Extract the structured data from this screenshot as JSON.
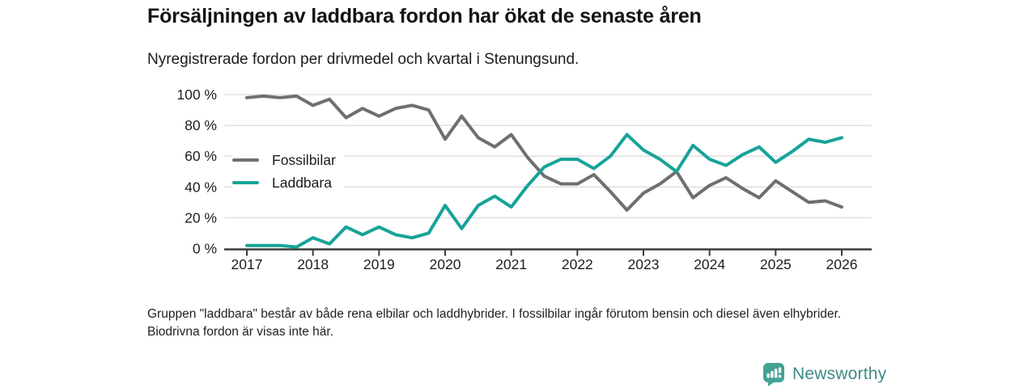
{
  "header": {
    "title": "Försäljningen av laddbara fordon har ökat de senaste åren",
    "subtitle": "Nyregistrerade fordon per drivmedel och kvartal i Stenungsund."
  },
  "chart_data": {
    "type": "line",
    "x_ticks": [
      {
        "label": "2017",
        "at_quarter": 0
      },
      {
        "label": "2018",
        "at_quarter": 4
      },
      {
        "label": "2019",
        "at_quarter": 8
      },
      {
        "label": "2020",
        "at_quarter": 12
      },
      {
        "label": "2021",
        "at_quarter": 16
      },
      {
        "label": "2022",
        "at_quarter": 20
      },
      {
        "label": "2023",
        "at_quarter": 24
      },
      {
        "label": "2024",
        "at_quarter": 28
      },
      {
        "label": "2025",
        "at_quarter": 32
      },
      {
        "label": "2026",
        "at_quarter": 36
      }
    ],
    "y_ticks": [
      {
        "value": 0,
        "label": "0 %"
      },
      {
        "value": 20,
        "label": "20 %"
      },
      {
        "value": 40,
        "label": "40 %"
      },
      {
        "value": 60,
        "label": "60 %"
      },
      {
        "value": 80,
        "label": "80 %"
      },
      {
        "value": 100,
        "label": "100 %"
      }
    ],
    "ylim": [
      0,
      100
    ],
    "grid": true,
    "legend_position": "inside-left",
    "series": [
      {
        "name": "Fossilbilar",
        "color": "#6f6f6f",
        "values": [
          98,
          99,
          98,
          99,
          93,
          97,
          85,
          91,
          86,
          91,
          93,
          90,
          71,
          86,
          72,
          66,
          74,
          59,
          47,
          42,
          42,
          48,
          37,
          25,
          36,
          42,
          50,
          33,
          41,
          46,
          39,
          33,
          44,
          37,
          30,
          31,
          27
        ]
      },
      {
        "name": "Laddbara",
        "color": "#17a398",
        "values": [
          2,
          2,
          2,
          1,
          7,
          3,
          14,
          9,
          14,
          9,
          7,
          10,
          28,
          13,
          28,
          34,
          27,
          41,
          53,
          58,
          58,
          52,
          60,
          74,
          64,
          58,
          50,
          67,
          58,
          54,
          61,
          66,
          56,
          63,
          71,
          69,
          72
        ]
      }
    ]
  },
  "footer": {
    "note": "Gruppen \"laddbara\" består av både rena elbilar och laddhybrider. I fossilbilar ingår förutom bensin och diesel även elhybrider. Biodrivna fordon är visas inte här."
  },
  "branding": {
    "name": "Newsworthy",
    "icon_color": "#44a294",
    "text_color": "#3e8a85"
  },
  "style": {
    "grid_color": "#dcdcdc",
    "axis_color": "#3c3c3c",
    "tick_label_color": "#1f1f1f"
  }
}
